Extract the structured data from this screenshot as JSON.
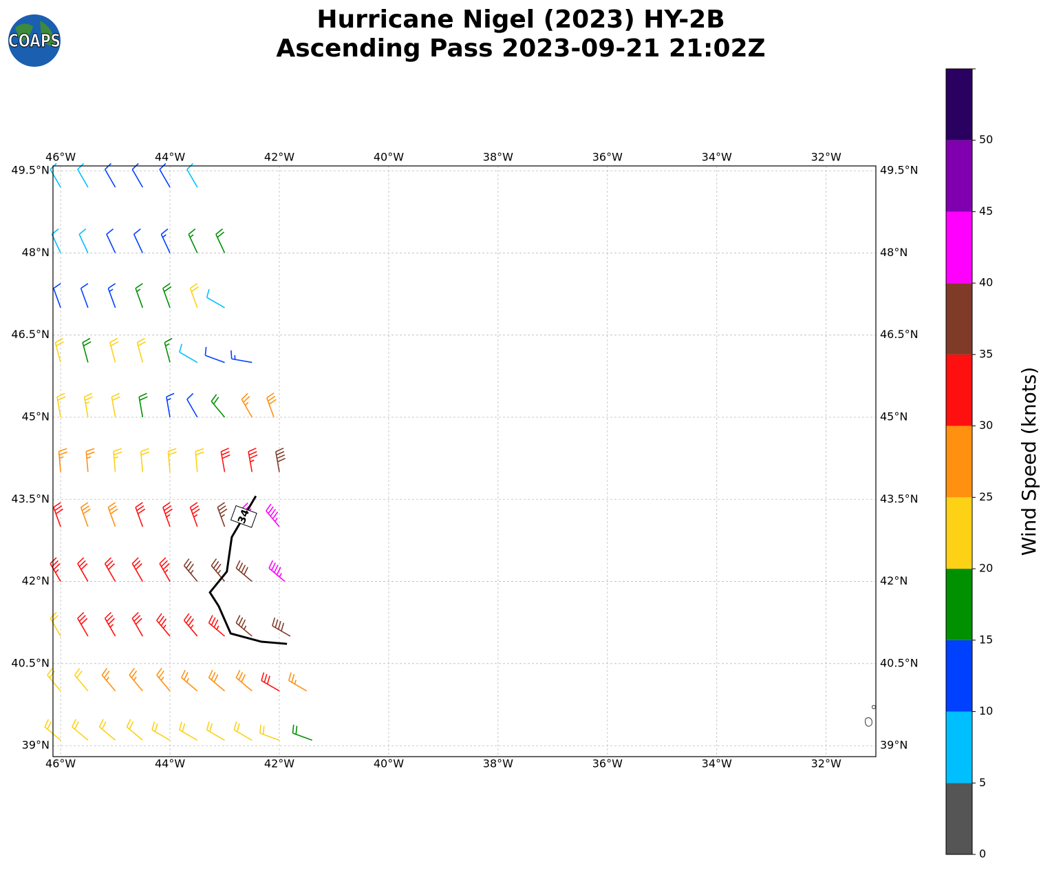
{
  "logo": "COAPS",
  "chart_data": {
    "type": "barbs",
    "title": [
      "Hurricane Nigel (2023) HY-2B",
      "Ascending Pass 2023-09-21 21:02Z"
    ],
    "xlim": [
      -46.14,
      -31.09
    ],
    "ylim": [
      38.8,
      49.59
    ],
    "xticks": [
      {
        "value": -46,
        "label": "46°W"
      },
      {
        "value": -44,
        "label": "44°W"
      },
      {
        "value": -42,
        "label": "42°W"
      },
      {
        "value": -40,
        "label": "40°W"
      },
      {
        "value": -38,
        "label": "38°W"
      },
      {
        "value": -36,
        "label": "36°W"
      },
      {
        "value": -34,
        "label": "34°W"
      },
      {
        "value": -32,
        "label": "32°W"
      }
    ],
    "yticks": [
      {
        "value": 39,
        "label": "39°N"
      },
      {
        "value": 40.5,
        "label": "40.5°N"
      },
      {
        "value": 42,
        "label": "42°N"
      },
      {
        "value": 43.5,
        "label": "43.5°N"
      },
      {
        "value": 45,
        "label": "45°N"
      },
      {
        "value": 46.5,
        "label": "46.5°N"
      },
      {
        "value": 48,
        "label": "48°N"
      },
      {
        "value": 49.5,
        "label": "49.5°N"
      }
    ],
    "grid": true,
    "colorbar": {
      "label": "Wind Speed (knots)",
      "lim": [
        0,
        55
      ],
      "ticks": [
        0,
        5,
        10,
        15,
        20,
        25,
        30,
        35,
        40,
        45,
        50
      ],
      "colors": [
        "#555555",
        "#00bfff",
        "#0040ff",
        "#009000",
        "#fcd116",
        "#ff9010",
        "#ff1010",
        "#7f3b28",
        "#ff00ff",
        "#8000b0",
        "#2a0060"
      ]
    },
    "contour": {
      "level": 34,
      "lon": [
        -42.43,
        -42.87,
        -42.96,
        -43.27,
        -43.11,
        -42.89,
        -42.33,
        -41.86
      ],
      "lat": [
        43.56,
        42.81,
        42.18,
        41.8,
        41.55,
        41.05,
        40.9,
        40.86
      ]
    },
    "barbs": [
      [
        -46,
        49.2,
        8,
        330
      ],
      [
        -45.5,
        49.2,
        8,
        330
      ],
      [
        -45,
        49.2,
        10,
        330
      ],
      [
        -44.5,
        49.2,
        12,
        330
      ],
      [
        -44,
        49.2,
        12,
        330
      ],
      [
        -43.5,
        49.2,
        8,
        330
      ],
      [
        -46,
        48,
        8,
        335
      ],
      [
        -45.5,
        48,
        8,
        335
      ],
      [
        -45,
        48,
        12,
        335
      ],
      [
        -44.5,
        48,
        12,
        335
      ],
      [
        -44,
        48,
        14,
        335
      ],
      [
        -43.5,
        48,
        16,
        335
      ],
      [
        -43,
        48,
        18,
        335
      ],
      [
        -46,
        47,
        12,
        340
      ],
      [
        -45.5,
        47,
        12,
        340
      ],
      [
        -45,
        47,
        13,
        340
      ],
      [
        -44.5,
        47,
        16,
        340
      ],
      [
        -44,
        47,
        18,
        340
      ],
      [
        -43.5,
        47,
        22,
        340
      ],
      [
        -43,
        47,
        8,
        300
      ],
      [
        -46,
        46,
        22,
        345
      ],
      [
        -45.5,
        46,
        18,
        345
      ],
      [
        -45,
        46,
        21,
        345
      ],
      [
        -44.5,
        46,
        22,
        345
      ],
      [
        -44,
        46,
        16,
        345
      ],
      [
        -43.5,
        46,
        8,
        300
      ],
      [
        -43,
        46,
        12,
        290
      ],
      [
        -42.5,
        46,
        14,
        280
      ],
      [
        -46,
        45,
        22,
        350
      ],
      [
        -45.5,
        45,
        24,
        350
      ],
      [
        -45,
        45,
        22,
        350
      ],
      [
        -44.5,
        45,
        18,
        350
      ],
      [
        -44,
        45,
        14,
        350
      ],
      [
        -43.5,
        45,
        12,
        330
      ],
      [
        -43,
        45,
        18,
        320
      ],
      [
        -42.5,
        45,
        27,
        330
      ],
      [
        -42.1,
        45,
        28,
        340
      ],
      [
        -46,
        44,
        27,
        355
      ],
      [
        -45.5,
        44,
        26,
        355
      ],
      [
        -45,
        44,
        24,
        355
      ],
      [
        -44.5,
        44,
        22,
        355
      ],
      [
        -44,
        44,
        20,
        355
      ],
      [
        -43.5,
        44,
        22,
        355
      ],
      [
        -43,
        44,
        32,
        350
      ],
      [
        -42.5,
        44,
        34,
        350
      ],
      [
        -42,
        44,
        38,
        350
      ],
      [
        -46,
        43,
        32,
        340
      ],
      [
        -45.5,
        43,
        28,
        340
      ],
      [
        -45,
        43,
        29,
        340
      ],
      [
        -44.5,
        43,
        31,
        340
      ],
      [
        -44,
        43,
        33,
        340
      ],
      [
        -43.5,
        43,
        34,
        340
      ],
      [
        -43,
        43,
        37,
        340
      ],
      [
        -42.5,
        43,
        42,
        330
      ],
      [
        -42,
        43,
        43,
        320
      ],
      [
        -46,
        42,
        33,
        330
      ],
      [
        -45.5,
        42,
        32,
        330
      ],
      [
        -45,
        42,
        30,
        330
      ],
      [
        -44.5,
        42,
        31,
        330
      ],
      [
        -44,
        42,
        33,
        330
      ],
      [
        -43.5,
        42,
        35,
        320
      ],
      [
        -43,
        42,
        37,
        320
      ],
      [
        -42.5,
        42,
        38,
        310
      ],
      [
        -41.9,
        42,
        43,
        310
      ],
      [
        -46,
        41,
        22,
        330
      ],
      [
        -45.5,
        41,
        31,
        330
      ],
      [
        -45,
        41,
        33,
        330
      ],
      [
        -44.5,
        41,
        32,
        330
      ],
      [
        -44,
        41,
        33,
        320
      ],
      [
        -43.5,
        41,
        33,
        320
      ],
      [
        -43,
        41,
        34,
        310
      ],
      [
        -42.5,
        41,
        36,
        310
      ],
      [
        -41.8,
        41,
        38,
        300
      ],
      [
        -46,
        40,
        22,
        320
      ],
      [
        -45.5,
        40,
        22,
        320
      ],
      [
        -45,
        40,
        27,
        320
      ],
      [
        -44.5,
        40,
        27,
        320
      ],
      [
        -44,
        40,
        26,
        320
      ],
      [
        -43.5,
        40,
        27,
        310
      ],
      [
        -43,
        40,
        28,
        310
      ],
      [
        -42.5,
        40,
        29,
        310
      ],
      [
        -42,
        40,
        30,
        300
      ],
      [
        -41.5,
        40,
        27,
        300
      ],
      [
        -46,
        39.1,
        21,
        310
      ],
      [
        -45.5,
        39.1,
        22,
        310
      ],
      [
        -45,
        39.1,
        22,
        310
      ],
      [
        -44.5,
        39.1,
        21,
        310
      ],
      [
        -44,
        39.1,
        22,
        300
      ],
      [
        -43.5,
        39.1,
        22,
        300
      ],
      [
        -43,
        39.1,
        21,
        300
      ],
      [
        -42.5,
        39.1,
        22,
        300
      ],
      [
        -42,
        39.1,
        21,
        290
      ],
      [
        -41.4,
        39.1,
        18,
        290
      ]
    ]
  }
}
